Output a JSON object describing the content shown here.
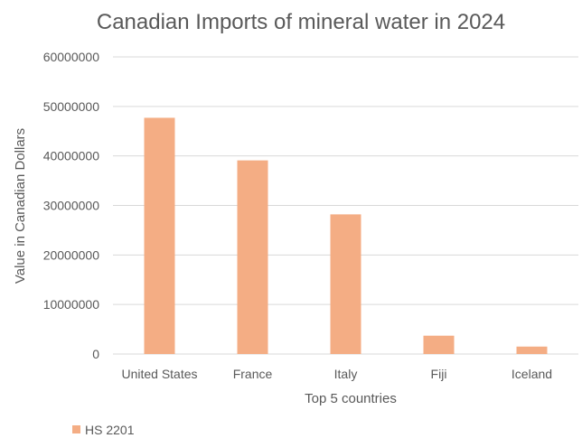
{
  "chart_data": {
    "type": "bar",
    "title": "Canadian Imports of mineral water in 2024",
    "xlabel": "Top 5 countries",
    "ylabel": "Value in Canadian Dollars",
    "categories": [
      "United States",
      "France",
      "Italy",
      "Fiji",
      "Iceland"
    ],
    "series": [
      {
        "name": "HS 2201",
        "values": [
          47700000,
          39100000,
          28200000,
          3700000,
          1500000
        ]
      }
    ],
    "ylim": [
      0,
      60000000
    ],
    "yticks": [
      "0",
      "10000000",
      "20000000",
      "30000000",
      "40000000",
      "50000000",
      "60000000"
    ],
    "grid": true,
    "legend_position": "bottom-left",
    "colors": {
      "bar": "#f4ad84",
      "grid": "#d9d9d9",
      "text": "#595959"
    }
  }
}
